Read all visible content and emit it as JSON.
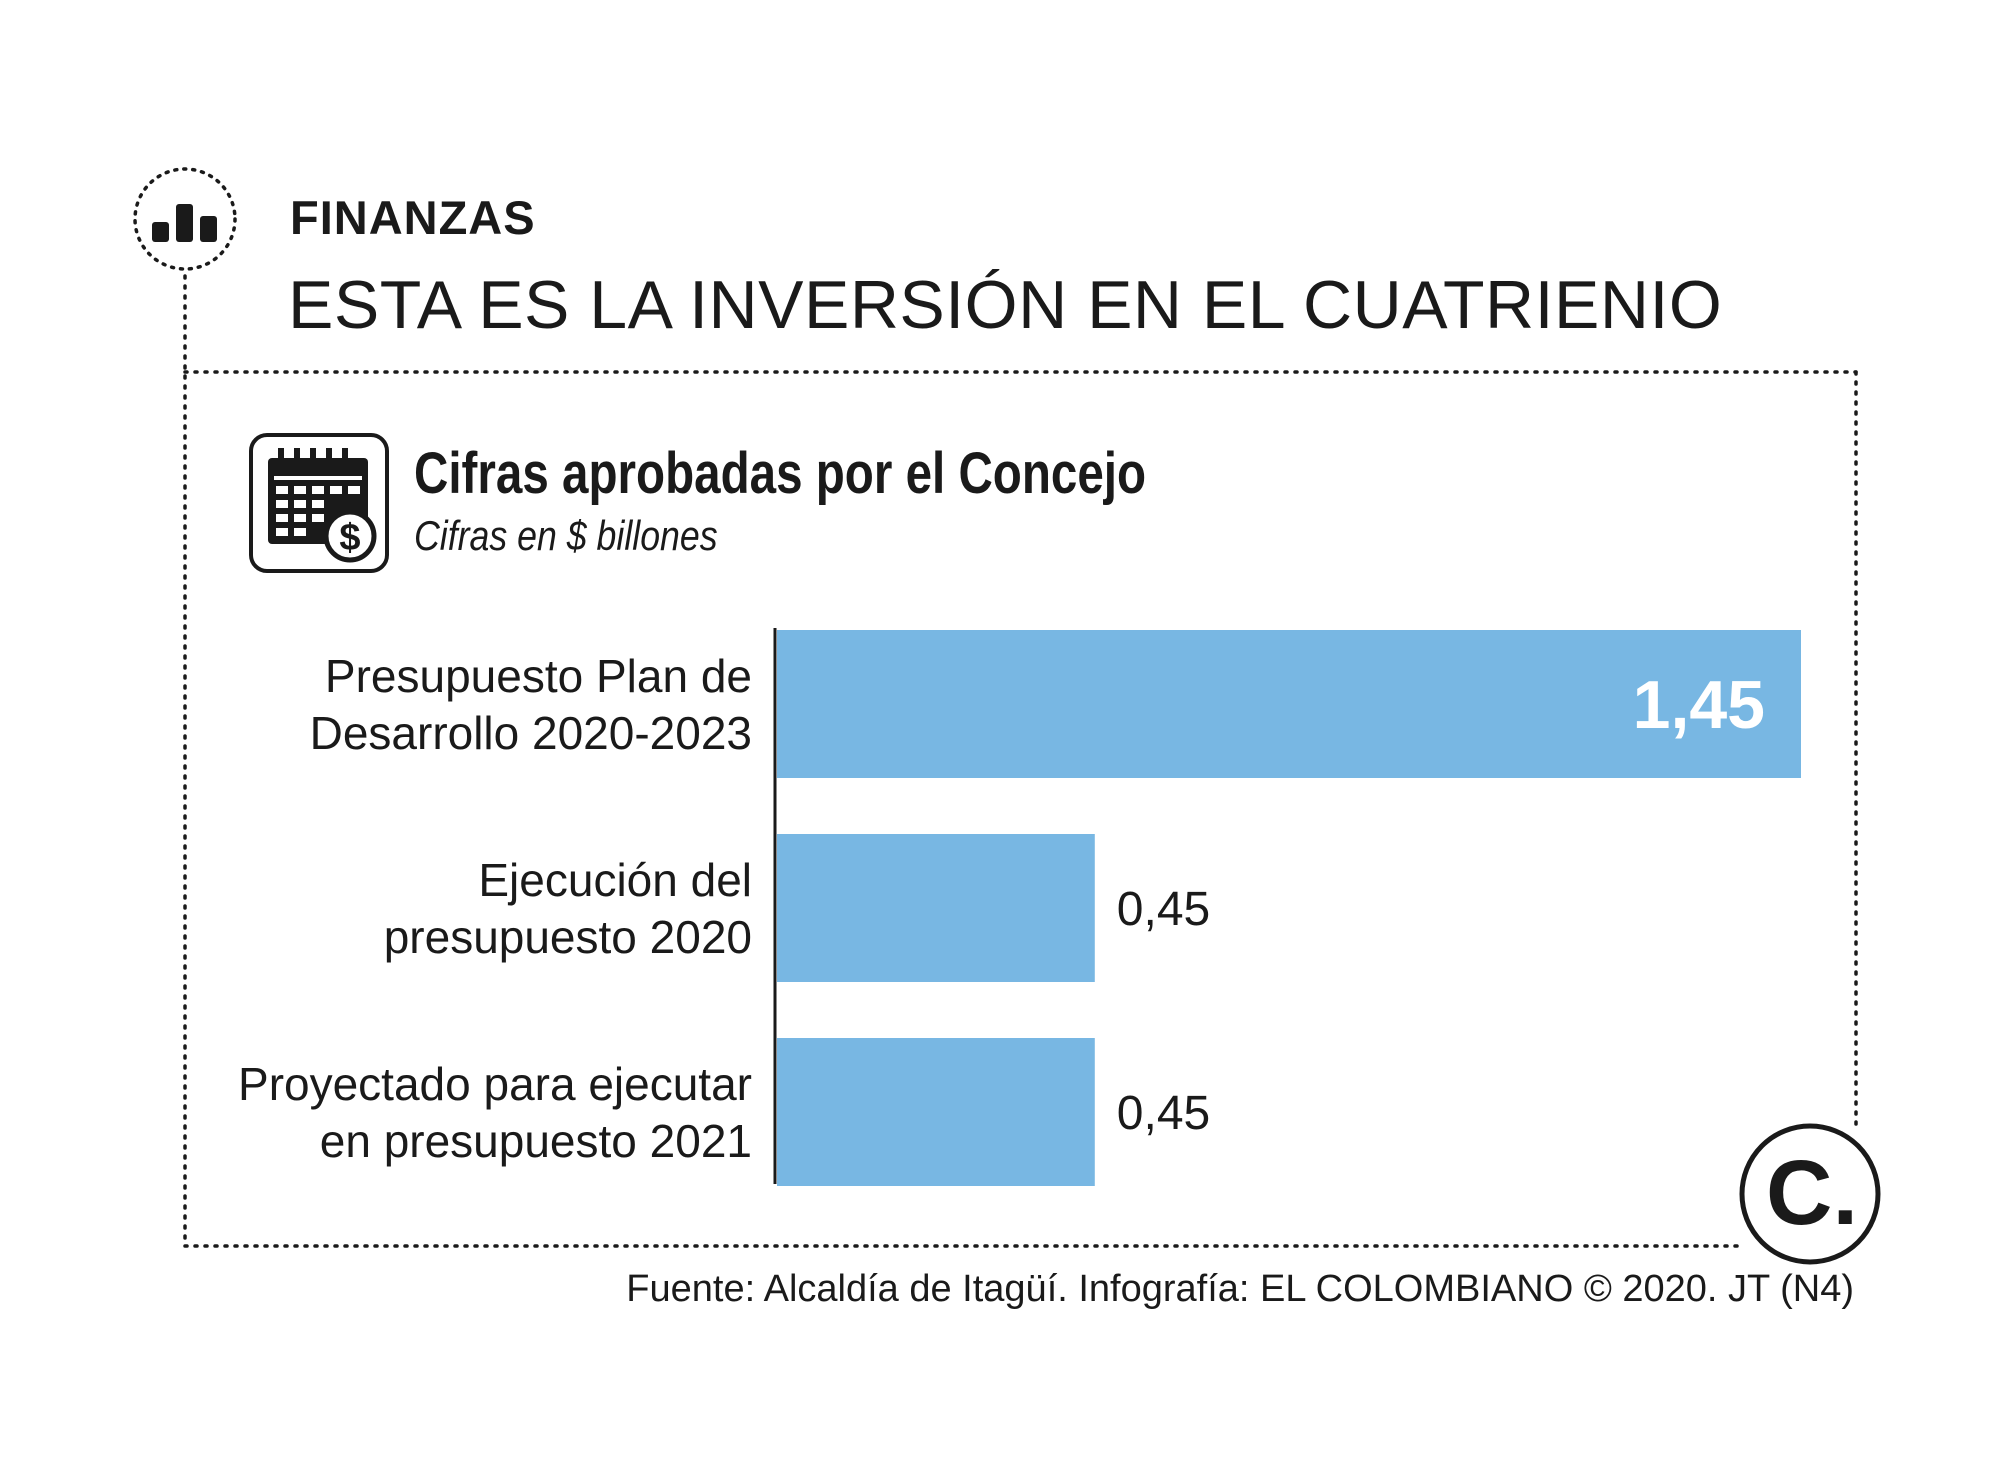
{
  "section": {
    "label": "FINANZAS",
    "icon": "bar-chart-icon"
  },
  "headline": "ESTA ES LA INVERSIÓN EN EL CUATRIENIO",
  "chart_data": {
    "type": "bar",
    "orientation": "horizontal",
    "title": "Cifras aprobadas por el Concejo",
    "subtitle": "Cifras en $ billones",
    "categories": [
      [
        "Presupuesto Plan de",
        "Desarrollo 2020-2023"
      ],
      [
        "Ejecución del",
        "presupuesto 2020"
      ],
      [
        "Proyectado para ejecutar",
        "en presupuesto 2021"
      ]
    ],
    "values": [
      1.45,
      0.45,
      0.45
    ],
    "value_labels": [
      "1,45",
      "0,45",
      "0,45"
    ],
    "xlim": [
      0,
      1.45
    ],
    "grid": false,
    "bar_color": "#78b7e3",
    "icon": "calendar-dollar-icon"
  },
  "logo": {
    "letter": "C.",
    "icon": "el-colombiano-logo"
  },
  "source": "Fuente: Alcaldía de Itagüí. Infografía: EL COLOMBIANO © 2020. JT (N4)"
}
